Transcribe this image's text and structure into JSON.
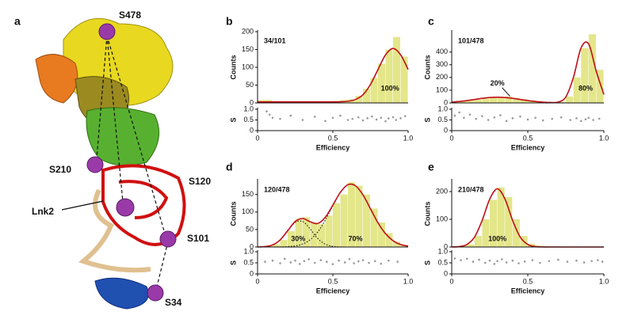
{
  "structure": {
    "panel": "a",
    "labels": [
      "S478",
      "S210",
      "S120",
      "Lnk2",
      "S101",
      "S34"
    ]
  },
  "chart_data": [
    {
      "type": "histogram",
      "panel": "b",
      "title": "34/101",
      "ylabel": "Counts",
      "xlabel": "Efficiency",
      "s_label": "S",
      "bins": [
        0,
        0.05,
        0.1,
        0.15,
        0.2,
        0.25,
        0.3,
        0.35,
        0.4,
        0.45,
        0.5,
        0.55,
        0.6,
        0.65,
        0.7,
        0.75,
        0.8,
        0.85,
        0.9,
        0.95,
        1
      ],
      "counts": [
        8,
        8,
        5,
        4,
        4,
        3,
        4,
        3,
        4,
        5,
        6,
        8,
        10,
        20,
        40,
        70,
        110,
        150,
        185,
        130
      ],
      "fit": [
        3,
        3,
        3,
        3,
        3,
        3,
        3,
        3,
        3,
        3,
        3,
        3.3,
        4.7,
        9.6,
        23,
        52,
        94,
        135,
        153,
        135,
        94
      ],
      "components": [],
      "annotations": [
        "100%"
      ],
      "color": "#e4e68a",
      "fit_color": "#c0101a",
      "ylim": [
        0,
        200
      ],
      "yticks": [
        0,
        50,
        100,
        150,
        200
      ],
      "xlim": [
        0,
        1
      ],
      "xticks": [
        0,
        0.5,
        {
          "value": 1,
          "label": "1.0"
        }
      ],
      "s_ylim": [
        0,
        1
      ],
      "s_yticks": [
        0,
        0.5,
        {
          "value": 1,
          "label": "1.0"
        }
      ],
      "scatter": {
        "color": "#9a9a9a",
        "x": [
          0.06,
          0.08,
          0.1,
          0.15,
          0.22,
          0.3,
          0.38,
          0.45,
          0.5,
          0.55,
          0.6,
          0.63,
          0.67,
          0.7,
          0.73,
          0.76,
          0.79,
          0.82,
          0.85,
          0.87,
          0.9,
          0.92,
          0.95,
          0.98
        ],
        "y": [
          0.9,
          0.75,
          0.6,
          0.55,
          0.7,
          0.5,
          0.65,
          0.45,
          0.6,
          0.7,
          0.5,
          0.55,
          0.62,
          0.48,
          0.58,
          0.66,
          0.52,
          0.6,
          0.44,
          0.57,
          0.63,
          0.5,
          0.58,
          0.68
        ]
      }
    },
    {
      "type": "histogram",
      "panel": "c",
      "title": "101/478",
      "ylabel": "Counts",
      "xlabel": "Efficiency",
      "s_label": "S",
      "bins": [
        0,
        0.05,
        0.1,
        0.15,
        0.2,
        0.25,
        0.3,
        0.35,
        0.4,
        0.45,
        0.5,
        0.55,
        0.6,
        0.65,
        0.7,
        0.75,
        0.8,
        0.85,
        0.9,
        0.95,
        1
      ],
      "counts": [
        10,
        15,
        20,
        25,
        35,
        40,
        45,
        50,
        40,
        30,
        20,
        15,
        8,
        5,
        8,
        50,
        200,
        430,
        540,
        260
      ],
      "fit": [
        6,
        11,
        18.5,
        27,
        36,
        42.5,
        45,
        42.5,
        36,
        27,
        18.5,
        11,
        6,
        3.3,
        6.7,
        47,
        201,
        432,
        463,
        248,
        66
      ],
      "components": [
        [
          6,
          11,
          18.5,
          27,
          36,
          42.5,
          45,
          42.5,
          36,
          27,
          18.5,
          11,
          6,
          3,
          1.3,
          0,
          0,
          0,
          0,
          0,
          0
        ],
        [
          0,
          0,
          0,
          0,
          0,
          0,
          0,
          0,
          0,
          0,
          0,
          0,
          0,
          0.3,
          5.4,
          47,
          201,
          432,
          463,
          248,
          66
        ]
      ],
      "annotations": [
        "20%",
        "80%"
      ],
      "color": "#e4e68a",
      "fit_color": "#c0101a",
      "ylim": [
        0,
        560
      ],
      "yticks": [
        0,
        100,
        200,
        300,
        400
      ],
      "xlim": [
        0,
        1
      ],
      "xticks": [
        0,
        0.5,
        {
          "value": 1,
          "label": "1.0"
        }
      ],
      "s_ylim": [
        0,
        1
      ],
      "s_yticks": [
        0,
        0.5,
        {
          "value": 1,
          "label": "1.0"
        }
      ],
      "scatter": {
        "color": "#9a9a9a",
        "x": [
          0.02,
          0.05,
          0.08,
          0.12,
          0.16,
          0.2,
          0.24,
          0.28,
          0.32,
          0.36,
          0.4,
          0.45,
          0.5,
          0.55,
          0.6,
          0.66,
          0.72,
          0.78,
          0.82,
          0.85,
          0.88,
          0.9,
          0.93,
          0.97
        ],
        "y": [
          0.7,
          0.85,
          0.6,
          0.75,
          0.55,
          0.68,
          0.5,
          0.62,
          0.72,
          0.45,
          0.58,
          0.66,
          0.52,
          0.6,
          0.48,
          0.55,
          0.62,
          0.5,
          0.58,
          0.45,
          0.53,
          0.6,
          0.5,
          0.56
        ]
      }
    },
    {
      "type": "histogram",
      "panel": "d",
      "title": "120/478",
      "ylabel": "Counts",
      "xlabel": "Efficiency",
      "s_label": "S",
      "bins": [
        0,
        0.05,
        0.1,
        0.15,
        0.2,
        0.25,
        0.3,
        0.35,
        0.4,
        0.45,
        0.5,
        0.55,
        0.6,
        0.65,
        0.7,
        0.75,
        0.8,
        0.85,
        0.9,
        0.95,
        1
      ],
      "counts": [
        2,
        3,
        8,
        20,
        45,
        80,
        85,
        70,
        65,
        90,
        125,
        150,
        185,
        175,
        150,
        110,
        70,
        40,
        15,
        5
      ],
      "fit": [
        0.2,
        1.2,
        6,
        20.3,
        46.5,
        73,
        81.4,
        72,
        67,
        85,
        119.7,
        156.2,
        178,
        175,
        149,
        109,
        69,
        38,
        18,
        7,
        2.5
      ],
      "components": [
        [
          0.2,
          1.2,
          6,
          20,
          45.5,
          70,
          72.7,
          51,
          24,
          8,
          1.7,
          0.2,
          0,
          0,
          0,
          0,
          0,
          0,
          0,
          0,
          0
        ],
        [
          0,
          0,
          0,
          0.3,
          1,
          3,
          8.7,
          21,
          43,
          77,
          118,
          156,
          178,
          175,
          149,
          109,
          69,
          38,
          18,
          7,
          2.5
        ]
      ],
      "annotations": [
        "30%",
        "70%"
      ],
      "color": "#e4e68a",
      "fit_color": "#c0101a",
      "ylim": [
        0,
        190
      ],
      "yticks": [
        0,
        50,
        100,
        150
      ],
      "xlim": [
        0,
        1
      ],
      "xticks": [
        0,
        0.5,
        {
          "value": 1,
          "label": "1.0"
        }
      ],
      "s_ylim": [
        0,
        1
      ],
      "s_yticks": [
        0,
        0.5,
        {
          "value": 1,
          "label": "1.0"
        }
      ],
      "scatter": {
        "color": "#9a9a9a",
        "x": [
          0.05,
          0.1,
          0.15,
          0.18,
          0.22,
          0.25,
          0.28,
          0.31,
          0.34,
          0.38,
          0.42,
          0.46,
          0.5,
          0.54,
          0.58,
          0.61,
          0.64,
          0.67,
          0.7,
          0.74,
          0.78,
          0.82,
          0.87,
          0.93
        ],
        "y": [
          0.55,
          0.6,
          0.48,
          0.68,
          0.52,
          0.6,
          0.45,
          0.58,
          0.66,
          0.5,
          0.62,
          0.55,
          0.44,
          0.6,
          0.52,
          0.67,
          0.48,
          0.57,
          0.62,
          0.5,
          0.58,
          0.46,
          0.6,
          0.55
        ]
      }
    },
    {
      "type": "histogram",
      "panel": "e",
      "title": "210/478",
      "ylabel": "Counts",
      "xlabel": "Efficiency",
      "s_label": "S",
      "bins": [
        0,
        0.05,
        0.1,
        0.15,
        0.2,
        0.25,
        0.3,
        0.35,
        0.4,
        0.45,
        0.5,
        0.55,
        0.6,
        0.65,
        0.7,
        0.75,
        0.8,
        0.85,
        0.9,
        0.95,
        1
      ],
      "counts": [
        3,
        5,
        10,
        40,
        100,
        170,
        215,
        180,
        100,
        40,
        12,
        5,
        3,
        2,
        2,
        1,
        2,
        1,
        1,
        1
      ],
      "fit": [
        0.2,
        1.6,
        9.2,
        36,
        96,
        173,
        210,
        173,
        96,
        36,
        9.2,
        1.6,
        0.2,
        0,
        0,
        0,
        0,
        0,
        0,
        0,
        0
      ],
      "components": [],
      "annotations": [
        "100%"
      ],
      "color": "#e4e68a",
      "fit_color": "#c0101a",
      "ylim": [
        0,
        240
      ],
      "yticks": [
        0,
        100,
        200
      ],
      "xlim": [
        0,
        1
      ],
      "xticks": [
        0,
        0.5,
        {
          "value": 1,
          "label": "1.0"
        }
      ],
      "s_ylim": [
        0,
        1
      ],
      "s_yticks": [
        0,
        0.5,
        {
          "value": 1,
          "label": "1.0"
        }
      ],
      "scatter": {
        "color": "#9a9a9a",
        "x": [
          0.02,
          0.06,
          0.1,
          0.14,
          0.18,
          0.22,
          0.25,
          0.28,
          0.3,
          0.33,
          0.36,
          0.4,
          0.44,
          0.48,
          0.53,
          0.58,
          0.64,
          0.7,
          0.76,
          0.82,
          0.87,
          0.92,
          0.96,
          0.99
        ],
        "y": [
          0.7,
          0.62,
          0.68,
          0.55,
          0.64,
          0.5,
          0.6,
          0.45,
          0.58,
          0.66,
          0.52,
          0.6,
          0.48,
          0.56,
          0.62,
          0.5,
          0.58,
          0.64,
          0.55,
          0.6,
          0.52,
          0.58,
          0.62,
          0.55
        ]
      }
    }
  ]
}
